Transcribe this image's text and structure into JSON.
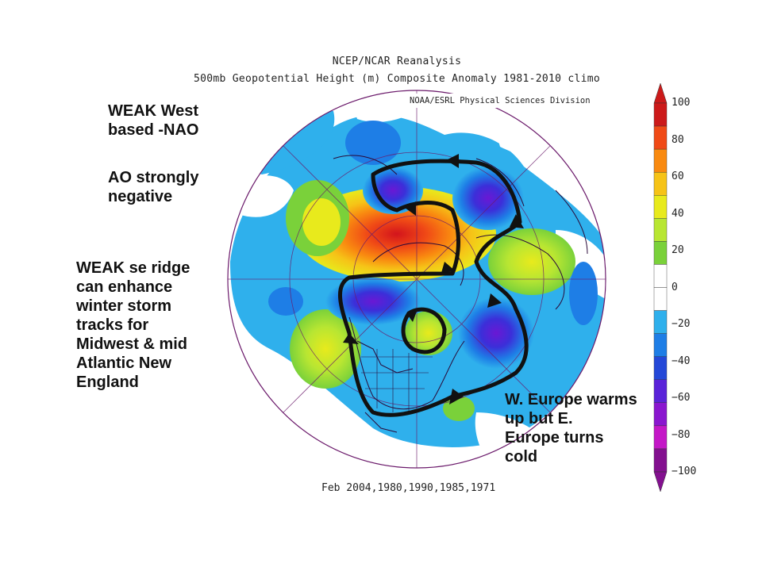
{
  "title_line1": "NCEP/NCAR Reanalysis",
  "title_line2": "500mb Geopotential Height (m) Composite Anomaly 1981-2010 climo",
  "credit": "NOAA/ESRL Physical Sciences Division",
  "footer": "Feb 2004,1980,1990,1985,1971",
  "annotations": {
    "nao": [
      "WEAK West",
      "based -NAO"
    ],
    "ao": [
      "AO strongly",
      "negative"
    ],
    "se_ridge": [
      "WEAK se ridge",
      "can enhance",
      "winter  storm",
      "tracks  for",
      "Midwest &  mid",
      "Atlantic New",
      "England"
    ],
    "europe": [
      "W. Europe warms",
      "up  but  E.",
      "Europe turns",
      "cold"
    ]
  },
  "colorbar": {
    "labels": [
      "100",
      "80",
      "60",
      "40",
      "20",
      "0",
      "−20",
      "−40",
      "−60",
      "−80",
      "−100"
    ],
    "colors": [
      "#cc1a1a",
      "#f04a16",
      "#f98a10",
      "#f6c317",
      "#e8ea1c",
      "#b8e632",
      "#7ad13a",
      "#ffffff",
      "#ffffff",
      "#2fb0ec",
      "#1e7ee6",
      "#2448d8",
      "#5a23d9",
      "#8a16cf",
      "#c417c7",
      "#83108f"
    ]
  },
  "colors": {
    "ring": "#6b1a6b",
    "land_outline": "#2a0a3a"
  }
}
